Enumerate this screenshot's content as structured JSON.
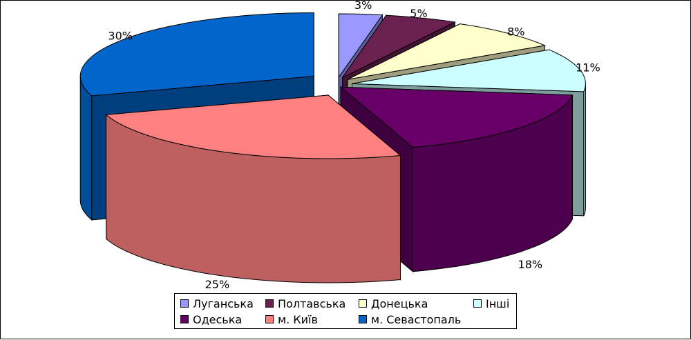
{
  "chart_data": {
    "type": "pie",
    "title": "",
    "categories": [
      "Луганська",
      "Полтавська",
      "Донецька",
      "Інші",
      "Одеська",
      "м. Київ",
      "м. Севастопаль"
    ],
    "values": [
      3,
      5,
      8,
      11,
      18,
      25,
      30
    ],
    "value_labels": [
      "3%",
      "5%",
      "8%",
      "11%",
      "18%",
      "25%",
      "30%"
    ],
    "colors": [
      "#9999ff",
      "#6b2150",
      "#ffffcc",
      "#ccffff",
      "#660066",
      "#ff8080",
      "#0066cc"
    ],
    "style": "3d-exploded",
    "legend_position": "bottom",
    "grid": false
  }
}
